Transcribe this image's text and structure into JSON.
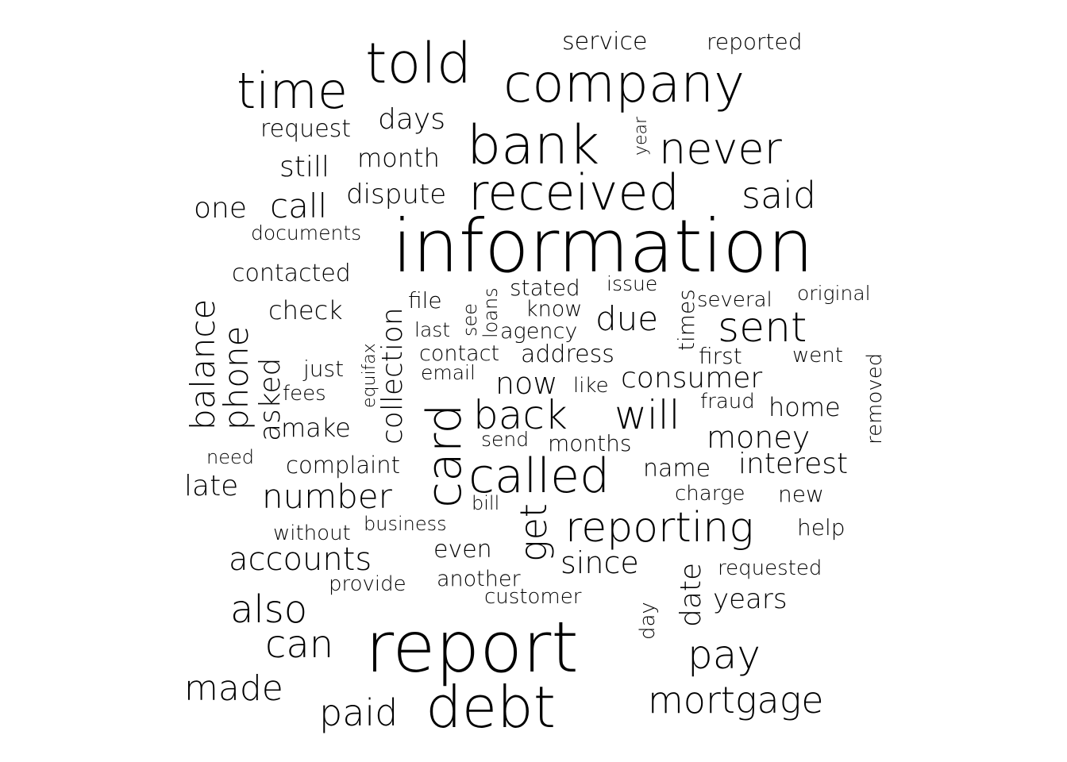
{
  "cloud": {
    "words": [
      {
        "text": "information",
        "weight": 1.0,
        "color": "#000000"
      },
      {
        "text": "report",
        "weight": 0.95,
        "color": "#000000"
      },
      {
        "text": "debt",
        "weight": 0.78,
        "color": "#000000"
      },
      {
        "text": "company",
        "weight": 0.7,
        "color": "#000000"
      },
      {
        "text": "told",
        "weight": 0.7,
        "color": "#000000"
      },
      {
        "text": "bank",
        "weight": 0.7,
        "color": "#000000"
      },
      {
        "text": "received",
        "weight": 0.66,
        "color": "#000000"
      },
      {
        "text": "called",
        "weight": 0.64,
        "color": "#000000"
      },
      {
        "text": "card",
        "weight": 0.64,
        "color": "#000000"
      },
      {
        "text": "time",
        "weight": 0.62,
        "color": "#000000"
      },
      {
        "text": "never",
        "weight": 0.57,
        "color": "#000000"
      },
      {
        "text": "reporting",
        "weight": 0.56,
        "color": "#000000"
      },
      {
        "text": "back",
        "weight": 0.53,
        "color": "#000000"
      },
      {
        "text": "will",
        "weight": 0.53,
        "color": "#000000"
      },
      {
        "text": "sent",
        "weight": 0.53,
        "color": "#000000"
      },
      {
        "text": "also",
        "weight": 0.5,
        "color": "#000000"
      },
      {
        "text": "pay",
        "weight": 0.5,
        "color": "#000000"
      },
      {
        "text": "said",
        "weight": 0.48,
        "color": "#000000"
      },
      {
        "text": "can",
        "weight": 0.48,
        "color": "#000000"
      },
      {
        "text": "get",
        "weight": 0.48,
        "color": "#000000"
      },
      {
        "text": "mortgage",
        "weight": 0.46,
        "color": "#000000"
      },
      {
        "text": "paid",
        "weight": 0.46,
        "color": "#000000"
      },
      {
        "text": "made",
        "weight": 0.44,
        "color": "#000000"
      },
      {
        "text": "balance",
        "weight": 0.42,
        "color": "#000000"
      },
      {
        "text": "phone",
        "weight": 0.42,
        "color": "#000000"
      },
      {
        "text": "number",
        "weight": 0.42,
        "color": "#000000"
      },
      {
        "text": "accounts",
        "weight": 0.42,
        "color": "#000000"
      },
      {
        "text": "due",
        "weight": 0.42,
        "color": "#000000"
      },
      {
        "text": "call",
        "weight": 0.42,
        "color": "#000000"
      },
      {
        "text": "collection",
        "weight": 0.38,
        "color": "#000000"
      },
      {
        "text": "since",
        "weight": 0.38,
        "color": "#000000"
      },
      {
        "text": "consumer",
        "weight": 0.38,
        "color": "#000000"
      },
      {
        "text": "money",
        "weight": 0.38,
        "color": "#000000"
      },
      {
        "text": "now",
        "weight": 0.38,
        "color": "#000000"
      },
      {
        "text": "asked",
        "weight": 0.36,
        "color": "#000000"
      },
      {
        "text": "date",
        "weight": 0.36,
        "color": "#000000"
      },
      {
        "text": "days",
        "weight": 0.35,
        "color": "#000000"
      },
      {
        "text": "one",
        "weight": 0.35,
        "color": "#000000"
      },
      {
        "text": "interest",
        "weight": 0.35,
        "color": "#000000"
      },
      {
        "text": "late",
        "weight": 0.35,
        "color": "#000000"
      },
      {
        "text": "years",
        "weight": 0.34,
        "color": "#000000"
      },
      {
        "text": "still",
        "weight": 0.33,
        "color": "#000000"
      },
      {
        "text": "dispute",
        "weight": 0.32,
        "color": "#000000"
      },
      {
        "text": "check",
        "weight": 0.32,
        "color": "#000000"
      },
      {
        "text": "home",
        "weight": 0.32,
        "color": "#000000"
      },
      {
        "text": "make",
        "weight": 0.32,
        "color": "#000000"
      },
      {
        "text": "month",
        "weight": 0.31,
        "color": "#000000"
      },
      {
        "text": "contacted",
        "weight": 0.31,
        "color": "#000000"
      },
      {
        "text": "address",
        "weight": 0.31,
        "color": "#000000"
      },
      {
        "text": "request",
        "weight": 0.3,
        "color": "#000000"
      },
      {
        "text": "service",
        "weight": 0.3,
        "color": "#000000"
      },
      {
        "text": "name",
        "weight": 0.3,
        "color": "#000000"
      },
      {
        "text": "even",
        "weight": 0.3,
        "color": "#000000"
      },
      {
        "text": "complaint",
        "weight": 0.29,
        "color": "#000000"
      },
      {
        "text": "months",
        "weight": 0.29,
        "color": "#000000"
      },
      {
        "text": "times",
        "weight": 0.29,
        "color": "#000000"
      },
      {
        "text": "removed",
        "weight": 0.28,
        "color": "#000000"
      },
      {
        "text": "reported",
        "weight": 0.28,
        "color": "#000000"
      },
      {
        "text": "help",
        "weight": 0.28,
        "color": "#000000"
      },
      {
        "text": "just",
        "weight": 0.28,
        "color": "#000000"
      },
      {
        "text": "stated",
        "weight": 0.28,
        "color": "#000000"
      },
      {
        "text": "first",
        "weight": 0.28,
        "color": "#000000"
      },
      {
        "text": "new",
        "weight": 0.28,
        "color": "#000000"
      },
      {
        "text": "agency",
        "weight": 0.27,
        "color": "#000000"
      },
      {
        "text": "contact",
        "weight": 0.27,
        "color": "#000000"
      },
      {
        "text": "know",
        "weight": 0.27,
        "color": "#000000"
      },
      {
        "text": "file",
        "weight": 0.27,
        "color": "#000000"
      },
      {
        "text": "another",
        "weight": 0.27,
        "color": "#000000"
      },
      {
        "text": "requested",
        "weight": 0.26,
        "color": "#000000"
      },
      {
        "text": "several",
        "weight": 0.26,
        "color": "#000000"
      },
      {
        "text": "day",
        "weight": 0.26,
        "color": "#000000"
      },
      {
        "text": "charge",
        "weight": 0.26,
        "color": "#000000"
      },
      {
        "text": "customer",
        "weight": 0.26,
        "color": "#000000"
      },
      {
        "text": "went",
        "weight": 0.26,
        "color": "#000000"
      },
      {
        "text": "fees",
        "weight": 0.26,
        "color": "#000000"
      },
      {
        "text": "like",
        "weight": 0.26,
        "color": "#000000"
      },
      {
        "text": "provide",
        "weight": 0.26,
        "color": "#000000"
      },
      {
        "text": "without",
        "weight": 0.26,
        "color": "#000000"
      },
      {
        "text": "documents",
        "weight": 0.25,
        "color": "#000000"
      },
      {
        "text": "fraud",
        "weight": 0.25,
        "color": "#000000"
      },
      {
        "text": "email",
        "weight": 0.25,
        "color": "#000000"
      },
      {
        "text": "original",
        "weight": 0.25,
        "color": "#000000"
      },
      {
        "text": "last",
        "weight": 0.25,
        "color": "#000000"
      },
      {
        "text": "send",
        "weight": 0.25,
        "color": "#000000"
      },
      {
        "text": "issue",
        "weight": 0.25,
        "color": "#000000"
      },
      {
        "text": "business",
        "weight": 0.24,
        "color": "#000000"
      },
      {
        "text": "need",
        "weight": 0.24,
        "color": "#000000"
      },
      {
        "text": "bill",
        "weight": 0.24,
        "color": "#000000"
      },
      {
        "text": "loans",
        "weight": 0.24,
        "color": "#000000"
      },
      {
        "text": "see",
        "weight": 0.24,
        "color": "#000000"
      },
      {
        "text": "equifax",
        "weight": 0.23,
        "color": "#000000"
      },
      {
        "text": "year",
        "weight": 0.23,
        "color": "#000000"
      }
    ]
  }
}
